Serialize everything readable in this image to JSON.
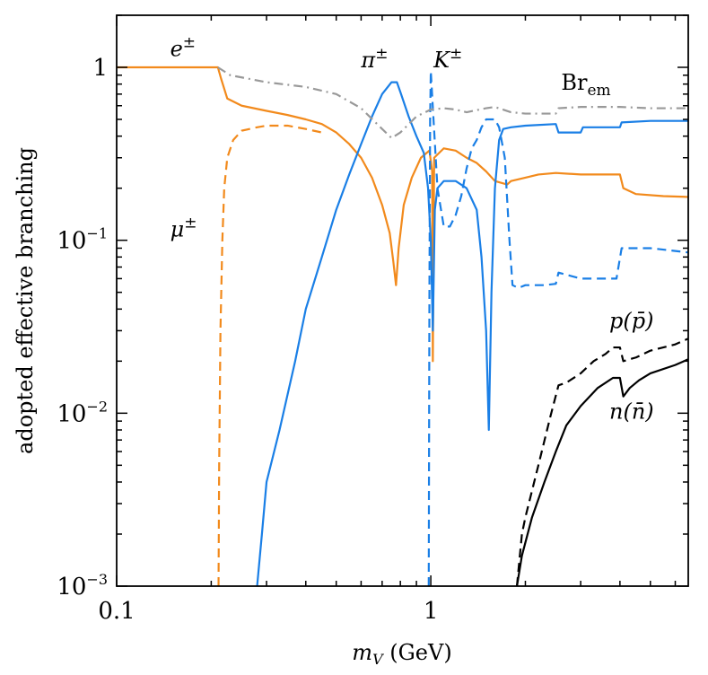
{
  "chart_data": {
    "type": "line",
    "title": "",
    "xlabel": "m_V (GeV)",
    "ylabel": "adopted effective branching",
    "xscale": "log",
    "yscale": "log",
    "xlim": [
      0.1,
      6.6
    ],
    "ylim": [
      0.001,
      2
    ],
    "grid": false,
    "x_ticks": [
      {
        "value": 0.1,
        "label": "0.1"
      },
      {
        "value": 1,
        "label": "1"
      }
    ],
    "y_ticks": [
      {
        "value": 0.001,
        "label_base": "10",
        "label_exp": "−3"
      },
      {
        "value": 0.01,
        "label_base": "10",
        "label_exp": "−2"
      },
      {
        "value": 0.1,
        "label_base": "10",
        "label_exp": "−1"
      },
      {
        "value": 1,
        "label_base": "1",
        "label_exp": ""
      }
    ],
    "annotations": [
      {
        "key": "e",
        "base": "e",
        "sup": "±",
        "sub": "",
        "italic": true,
        "x": 0.148,
        "y": 1.16
      },
      {
        "key": "mu",
        "base": "μ",
        "sup": "±",
        "sub": "",
        "italic": true,
        "x": 0.148,
        "y": 0.105
      },
      {
        "key": "pi",
        "base": "π",
        "sup": "±",
        "sub": "",
        "italic": true,
        "x": 0.6,
        "y": 1.0
      },
      {
        "key": "K",
        "base": "K",
        "sup": "±",
        "sub": "",
        "italic": true,
        "x": 1.02,
        "y": 1.0
      },
      {
        "key": "Brem",
        "base": "Br",
        "sup": "",
        "sub": "em",
        "italic": false,
        "x": 2.6,
        "y": 0.74
      },
      {
        "key": "p",
        "base": "p(p̄)",
        "sup": "",
        "sub": "",
        "italic": true,
        "x": 3.7,
        "y": 0.031
      },
      {
        "key": "n",
        "base": "n(n̄)",
        "sup": "",
        "sub": "",
        "italic": true,
        "x": 3.7,
        "y": 0.0093
      }
    ],
    "series": [
      {
        "key": "electron",
        "color": "#f28a1c",
        "dash": "",
        "points": [
          [
            0.1,
            1.0
          ],
          [
            0.21,
            1.0
          ],
          [
            0.215,
            0.86
          ],
          [
            0.225,
            0.66
          ],
          [
            0.25,
            0.6
          ],
          [
            0.3,
            0.56
          ],
          [
            0.35,
            0.53
          ],
          [
            0.4,
            0.5
          ],
          [
            0.45,
            0.47
          ],
          [
            0.5,
            0.42
          ],
          [
            0.55,
            0.36
          ],
          [
            0.6,
            0.3
          ],
          [
            0.65,
            0.23
          ],
          [
            0.7,
            0.16
          ],
          [
            0.74,
            0.11
          ],
          [
            0.76,
            0.075
          ],
          [
            0.775,
            0.055
          ],
          [
            0.79,
            0.09
          ],
          [
            0.82,
            0.16
          ],
          [
            0.87,
            0.23
          ],
          [
            0.93,
            0.3
          ],
          [
            0.99,
            0.33
          ],
          [
            1.01,
            0.25
          ],
          [
            1.015,
            0.02
          ],
          [
            1.025,
            0.3
          ],
          [
            1.1,
            0.34
          ],
          [
            1.2,
            0.33
          ],
          [
            1.3,
            0.3
          ],
          [
            1.4,
            0.28
          ],
          [
            1.5,
            0.25
          ],
          [
            1.6,
            0.22
          ],
          [
            1.75,
            0.21
          ],
          [
            1.8,
            0.22
          ],
          [
            2.0,
            0.23
          ],
          [
            2.2,
            0.24
          ],
          [
            2.5,
            0.245
          ],
          [
            3.0,
            0.24
          ],
          [
            4.0,
            0.24
          ],
          [
            4.1,
            0.2
          ],
          [
            4.5,
            0.185
          ],
          [
            5.5,
            0.18
          ],
          [
            6.6,
            0.178
          ]
        ]
      },
      {
        "key": "muon",
        "color": "#f28a1c",
        "dash": "10,6",
        "points": [
          [
            0.211,
            0.001
          ],
          [
            0.212,
            0.005
          ],
          [
            0.214,
            0.03
          ],
          [
            0.217,
            0.1
          ],
          [
            0.22,
            0.2
          ],
          [
            0.225,
            0.3
          ],
          [
            0.235,
            0.38
          ],
          [
            0.25,
            0.43
          ],
          [
            0.28,
            0.45
          ],
          [
            0.3,
            0.46
          ],
          [
            0.35,
            0.46
          ],
          [
            0.4,
            0.44
          ],
          [
            0.45,
            0.42
          ]
        ]
      },
      {
        "key": "pion",
        "color": "#1a7fe6",
        "dash": "",
        "points": [
          [
            0.28,
            0.001
          ],
          [
            0.29,
            0.002
          ],
          [
            0.3,
            0.004
          ],
          [
            0.33,
            0.008
          ],
          [
            0.37,
            0.02
          ],
          [
            0.4,
            0.04
          ],
          [
            0.45,
            0.08
          ],
          [
            0.5,
            0.15
          ],
          [
            0.55,
            0.24
          ],
          [
            0.6,
            0.36
          ],
          [
            0.65,
            0.52
          ],
          [
            0.7,
            0.7
          ],
          [
            0.75,
            0.82
          ],
          [
            0.78,
            0.82
          ],
          [
            0.8,
            0.72
          ],
          [
            0.85,
            0.52
          ],
          [
            0.9,
            0.4
          ],
          [
            0.95,
            0.32
          ],
          [
            0.98,
            0.2
          ],
          [
            1.0,
            0.1
          ],
          [
            1.015,
            0.03
          ],
          [
            1.03,
            0.15
          ],
          [
            1.05,
            0.2
          ],
          [
            1.1,
            0.22
          ],
          [
            1.2,
            0.22
          ],
          [
            1.3,
            0.2
          ],
          [
            1.4,
            0.15
          ],
          [
            1.45,
            0.08
          ],
          [
            1.5,
            0.03
          ],
          [
            1.53,
            0.008
          ],
          [
            1.56,
            0.05
          ],
          [
            1.6,
            0.2
          ],
          [
            1.65,
            0.38
          ],
          [
            1.7,
            0.44
          ],
          [
            1.8,
            0.45
          ],
          [
            2.0,
            0.46
          ],
          [
            2.5,
            0.47
          ],
          [
            2.55,
            0.42
          ],
          [
            3.0,
            0.42
          ],
          [
            3.05,
            0.45
          ],
          [
            4.0,
            0.45
          ],
          [
            4.05,
            0.48
          ],
          [
            5.0,
            0.49
          ],
          [
            6.6,
            0.49
          ]
        ]
      },
      {
        "key": "kaon",
        "color": "#1a7fe6",
        "dash": "10,6",
        "points": [
          [
            0.985,
            0.001
          ],
          [
            0.99,
            0.05
          ],
          [
            0.995,
            0.5
          ],
          [
            1.0,
            0.95
          ],
          [
            1.02,
            0.5
          ],
          [
            1.05,
            0.2
          ],
          [
            1.1,
            0.12
          ],
          [
            1.15,
            0.12
          ],
          [
            1.2,
            0.14
          ],
          [
            1.25,
            0.18
          ],
          [
            1.3,
            0.26
          ],
          [
            1.35,
            0.34
          ],
          [
            1.4,
            0.38
          ],
          [
            1.45,
            0.45
          ],
          [
            1.5,
            0.5
          ],
          [
            1.55,
            0.5
          ],
          [
            1.6,
            0.5
          ],
          [
            1.65,
            0.45
          ],
          [
            1.72,
            0.3
          ],
          [
            1.78,
            0.1
          ],
          [
            1.82,
            0.055
          ],
          [
            1.9,
            0.053
          ],
          [
            2.0,
            0.055
          ],
          [
            2.3,
            0.055
          ],
          [
            2.5,
            0.056
          ],
          [
            2.55,
            0.065
          ],
          [
            3.0,
            0.06
          ],
          [
            3.5,
            0.06
          ],
          [
            3.9,
            0.06
          ],
          [
            4.05,
            0.09
          ],
          [
            5.0,
            0.09
          ],
          [
            6.6,
            0.085
          ]
        ]
      },
      {
        "key": "brem",
        "color": "#999999",
        "dash": "10,5,2,5",
        "points": [
          [
            0.21,
            1.0
          ],
          [
            0.23,
            0.9
          ],
          [
            0.3,
            0.82
          ],
          [
            0.4,
            0.77
          ],
          [
            0.5,
            0.7
          ],
          [
            0.6,
            0.58
          ],
          [
            0.7,
            0.44
          ],
          [
            0.75,
            0.39
          ],
          [
            0.8,
            0.42
          ],
          [
            0.9,
            0.52
          ],
          [
            1.0,
            0.57
          ],
          [
            1.1,
            0.58
          ],
          [
            1.2,
            0.57
          ],
          [
            1.3,
            0.55
          ],
          [
            1.5,
            0.58
          ],
          [
            1.6,
            0.59
          ],
          [
            1.8,
            0.55
          ],
          [
            2.0,
            0.54
          ],
          [
            2.5,
            0.54
          ],
          [
            2.55,
            0.58
          ],
          [
            3.0,
            0.59
          ],
          [
            4.0,
            0.59
          ],
          [
            5.0,
            0.58
          ],
          [
            6.6,
            0.58
          ]
        ]
      },
      {
        "key": "proton",
        "color": "#000000",
        "dash": "10,6",
        "points": [
          [
            1.88,
            0.001
          ],
          [
            1.95,
            0.002
          ],
          [
            2.0,
            0.0025
          ],
          [
            2.2,
            0.005
          ],
          [
            2.4,
            0.0095
          ],
          [
            2.55,
            0.0145
          ],
          [
            2.7,
            0.015
          ],
          [
            3.0,
            0.017
          ],
          [
            3.3,
            0.02
          ],
          [
            3.6,
            0.022
          ],
          [
            3.8,
            0.024
          ],
          [
            4.0,
            0.024
          ],
          [
            4.1,
            0.02
          ],
          [
            4.5,
            0.021
          ],
          [
            5.0,
            0.023
          ],
          [
            6.0,
            0.025
          ],
          [
            6.6,
            0.027
          ]
        ]
      },
      {
        "key": "neutron",
        "color": "#000000",
        "dash": "",
        "points": [
          [
            1.88,
            0.001
          ],
          [
            1.95,
            0.0015
          ],
          [
            2.1,
            0.0025
          ],
          [
            2.3,
            0.004
          ],
          [
            2.5,
            0.006
          ],
          [
            2.7,
            0.0085
          ],
          [
            3.0,
            0.011
          ],
          [
            3.4,
            0.014
          ],
          [
            3.8,
            0.016
          ],
          [
            4.0,
            0.016
          ],
          [
            4.1,
            0.0125
          ],
          [
            4.3,
            0.014
          ],
          [
            4.6,
            0.0155
          ],
          [
            5.0,
            0.017
          ],
          [
            6.0,
            0.019
          ],
          [
            6.6,
            0.0205
          ]
        ]
      }
    ]
  }
}
